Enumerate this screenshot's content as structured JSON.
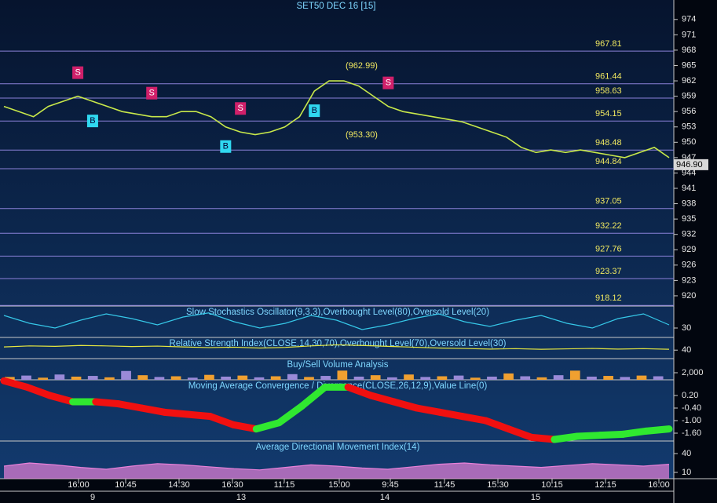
{
  "chart_data": [
    {
      "type": "line",
      "title": "SET50 DEC 16  [15]",
      "color": "#c8e84a",
      "values": [
        957,
        956,
        955,
        957,
        958,
        959,
        958,
        957,
        956,
        955.5,
        955,
        955,
        956,
        956,
        955,
        953,
        952,
        951.5,
        952,
        953,
        955,
        960,
        962,
        962,
        961,
        959,
        957,
        956,
        955.5,
        955,
        954.5,
        954,
        953,
        952,
        951,
        949,
        948,
        948.5,
        948,
        948.5,
        948,
        947.5,
        947,
        948,
        949,
        947
      ],
      "ylim": [
        918,
        977.8
      ],
      "yticks": [
        974,
        971,
        968,
        965,
        962,
        959,
        956,
        953,
        950,
        947,
        944,
        941,
        938,
        935,
        932,
        929,
        926,
        923,
        920
      ],
      "levels": [
        967.81,
        961.44,
        958.63,
        954.15,
        948.48,
        944.84,
        937.05,
        932.22,
        927.76,
        923.37,
        918.12
      ],
      "last_price": "946.90",
      "annotations": [
        "(962.99)",
        "(953.30)"
      ],
      "signals": [
        {
          "label": "S",
          "index": 5
        },
        {
          "label": "S",
          "index": 10
        },
        {
          "label": "S",
          "index": 16
        },
        {
          "label": "S",
          "index": 26
        },
        {
          "label": "B",
          "index": 6
        },
        {
          "label": "B",
          "index": 15
        },
        {
          "label": "B",
          "index": 21
        }
      ],
      "xticks": [
        "16:00",
        "10:45",
        "14:30",
        "16:30",
        "11:15",
        "15:00",
        "9:45",
        "11:45",
        "15:30",
        "10:15",
        "12:15",
        "16:00"
      ],
      "days": [
        "9",
        "13",
        "14",
        "15"
      ]
    },
    {
      "type": "line",
      "title": "Slow Stochastics Oscillator(9,3,3),Overbought Level(80),Oversold Level(20)",
      "color": "#36c8e8",
      "values": [
        70,
        45,
        30,
        55,
        75,
        60,
        40,
        65,
        78,
        50,
        30,
        45,
        70,
        55,
        25,
        40,
        60,
        75,
        50,
        35,
        55,
        70,
        45,
        30,
        60,
        75,
        40
      ],
      "ylim": [
        0,
        100
      ],
      "yticks": [
        30
      ]
    },
    {
      "type": "line",
      "title": "Relative Strength Index(CLOSE,14,30,70),Overbought Level(70),Oversold Level(30)",
      "color": "#e8e840",
      "values": [
        55,
        60,
        58,
        62,
        60,
        57,
        59,
        55,
        52,
        54,
        50,
        53,
        60,
        65,
        62,
        58,
        54,
        50,
        48,
        45,
        47,
        44,
        46,
        48,
        45,
        47,
        44
      ],
      "ylim": [
        0,
        100
      ],
      "yticks": [
        40
      ]
    },
    {
      "type": "bar",
      "title": "Buy/Sell Volume Analysis",
      "colors": [
        "#f0a030",
        "#9a8ad8"
      ],
      "values": [
        800,
        1200,
        600,
        1500,
        900,
        1100,
        700,
        2500,
        1300,
        800,
        1000,
        600,
        1400,
        900,
        1200,
        700,
        1000,
        1600,
        800,
        1100,
        2600,
        900,
        1300,
        700,
        1500,
        800,
        1000,
        1200,
        600,
        900,
        1800,
        1000,
        700,
        1300,
        2600,
        900,
        1100,
        800,
        1200,
        1000
      ],
      "ylim": [
        0,
        6000
      ],
      "yticks": [
        {
          "value": 2000,
          "label": "2,000"
        }
      ]
    },
    {
      "type": "macd",
      "title": "Moving Average Convergence / Divergence(CLOSE,26,12,9),Value Line(0)",
      "values": [
        0.9,
        0.6,
        0.2,
        -0.1,
        -0.1,
        -0.2,
        -0.4,
        -0.6,
        -0.7,
        -0.8,
        -1.2,
        -1.4,
        -1.1,
        -0.3,
        0.6,
        0.6,
        0.2,
        -0.1,
        -0.4,
        -0.6,
        -0.8,
        -1.0,
        -1.4,
        -1.8,
        -1.9,
        -1.75,
        -1.7,
        -1.65,
        -1.5,
        -1.4
      ],
      "ylim": [
        -1.975,
        0.95
      ],
      "yticks": [
        {
          "value": 0.2,
          "label": "0.20"
        },
        {
          "value": -0.4,
          "label": "-0.40"
        },
        {
          "value": -1.0,
          "label": "-1.00"
        },
        {
          "value": -1.6,
          "label": "-1.60"
        }
      ]
    },
    {
      "type": "area",
      "title": "Average Directional Movement Index(14)",
      "color": "#e880d8",
      "values": [
        20,
        25,
        22,
        18,
        15,
        20,
        24,
        22,
        19,
        16,
        14,
        18,
        22,
        20,
        17,
        15,
        19,
        23,
        25,
        22,
        20,
        18,
        21,
        24,
        22,
        20,
        23
      ],
      "ylim": [
        0,
        60
      ],
      "yticks": [
        40,
        10
      ]
    }
  ]
}
